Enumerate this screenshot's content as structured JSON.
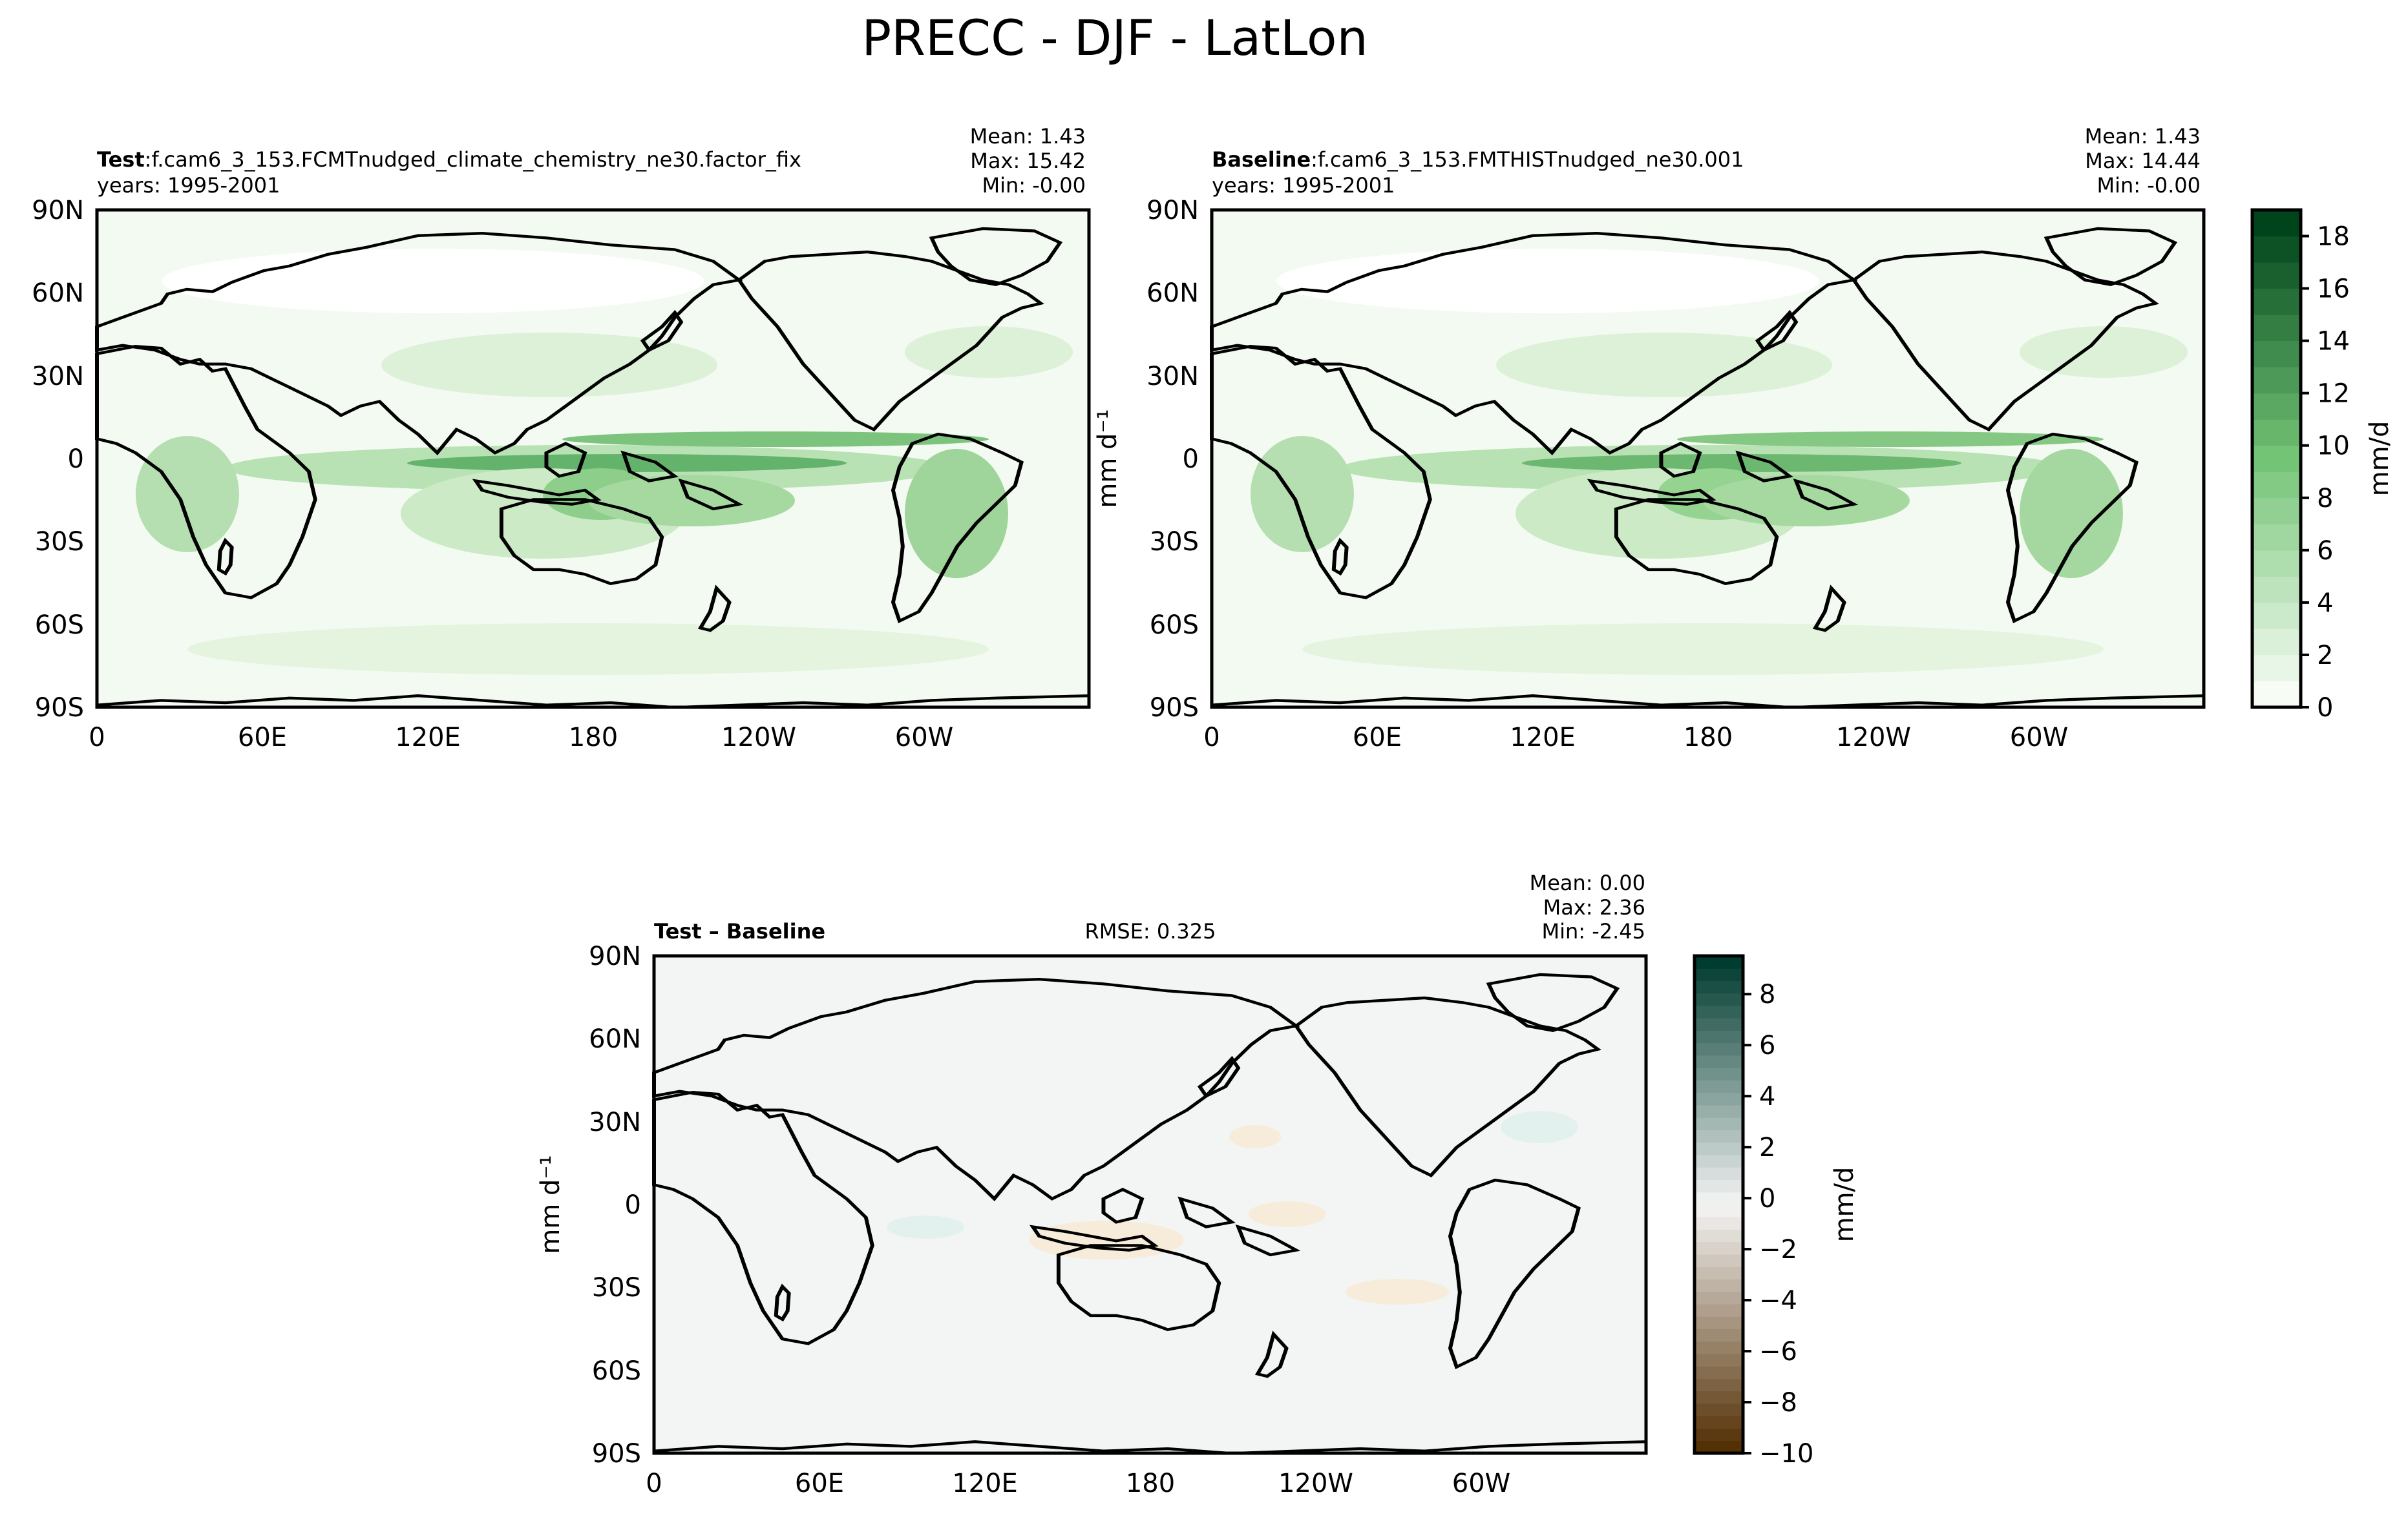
{
  "figure": {
    "title": "PRECC - DJF - LatLon"
  },
  "axes_ticks": {
    "lat": [
      "90N",
      "60N",
      "30N",
      "0",
      "30S",
      "60S",
      "90S"
    ],
    "lon": [
      "0",
      "60E",
      "120E",
      "180",
      "120W",
      "60W"
    ]
  },
  "panels": {
    "test": {
      "label": "Test",
      "case": ":f.cam6_3_153.FCMTnudged_climate_chemistry_ne30.factor_fix",
      "years": "years: 1995-2001",
      "mean": "Mean:  1.43",
      "max": "Max: 15.42",
      "min": "Min: -0.00"
    },
    "baseline": {
      "label": "Baseline",
      "case": ":f.cam6_3_153.FMTHISTnudged_ne30.001",
      "years": "years: 1995-2001",
      "mean": "Mean:  1.43",
      "max": "Max: 14.44",
      "min": "Min: -0.00"
    },
    "diff": {
      "label": "Test – Baseline",
      "rmse": "RMSE: 0.325",
      "mean": "Mean:  0.00",
      "max": "Max:  2.36",
      "min": "Min: -2.45"
    }
  },
  "colorbars": {
    "top": {
      "label": "mm/d",
      "ticks": [
        "0",
        "2",
        "4",
        "6",
        "8",
        "10",
        "12",
        "14",
        "16",
        "18"
      ],
      "colormap": "Greens",
      "colors": {
        "low": "#f7fcf5",
        "high": "#00441b"
      }
    },
    "diff": {
      "label": "mm/d",
      "ticks": [
        "8",
        "6",
        "4",
        "2",
        "0",
        "−2",
        "−4",
        "−6",
        "−8",
        "−10"
      ],
      "colormap": "BrBG",
      "colors": {
        "low": "#543005",
        "mid": "#f5f5f5",
        "high": "#003c30"
      }
    }
  },
  "side_labels": {
    "top": "mm d⁻¹",
    "diff": "mm d⁻¹"
  }
}
